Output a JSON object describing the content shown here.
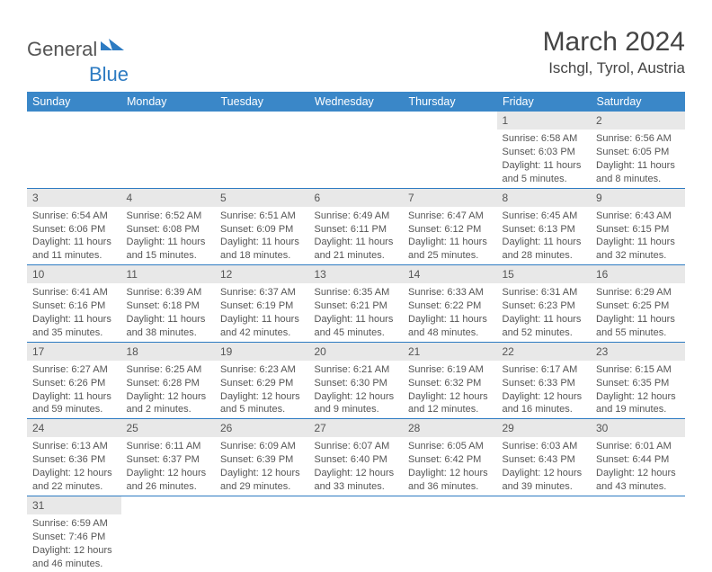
{
  "logo": {
    "general": "General",
    "blue": "Blue"
  },
  "title": "March 2024",
  "location": "Ischgl, Tyrol, Austria",
  "colors": {
    "header_bg": "#3a87c8",
    "header_text": "#ffffff",
    "border": "#2d7bc2",
    "daynum_bg": "#e8e8e8",
    "text": "#555555"
  },
  "weekdays": [
    "Sunday",
    "Monday",
    "Tuesday",
    "Wednesday",
    "Thursday",
    "Friday",
    "Saturday"
  ],
  "weeks": [
    [
      null,
      null,
      null,
      null,
      null,
      {
        "n": "1",
        "sr": "6:58 AM",
        "ss": "6:03 PM",
        "dl": "11 hours and 5 minutes."
      },
      {
        "n": "2",
        "sr": "6:56 AM",
        "ss": "6:05 PM",
        "dl": "11 hours and 8 minutes."
      }
    ],
    [
      {
        "n": "3",
        "sr": "6:54 AM",
        "ss": "6:06 PM",
        "dl": "11 hours and 11 minutes."
      },
      {
        "n": "4",
        "sr": "6:52 AM",
        "ss": "6:08 PM",
        "dl": "11 hours and 15 minutes."
      },
      {
        "n": "5",
        "sr": "6:51 AM",
        "ss": "6:09 PM",
        "dl": "11 hours and 18 minutes."
      },
      {
        "n": "6",
        "sr": "6:49 AM",
        "ss": "6:11 PM",
        "dl": "11 hours and 21 minutes."
      },
      {
        "n": "7",
        "sr": "6:47 AM",
        "ss": "6:12 PM",
        "dl": "11 hours and 25 minutes."
      },
      {
        "n": "8",
        "sr": "6:45 AM",
        "ss": "6:13 PM",
        "dl": "11 hours and 28 minutes."
      },
      {
        "n": "9",
        "sr": "6:43 AM",
        "ss": "6:15 PM",
        "dl": "11 hours and 32 minutes."
      }
    ],
    [
      {
        "n": "10",
        "sr": "6:41 AM",
        "ss": "6:16 PM",
        "dl": "11 hours and 35 minutes."
      },
      {
        "n": "11",
        "sr": "6:39 AM",
        "ss": "6:18 PM",
        "dl": "11 hours and 38 minutes."
      },
      {
        "n": "12",
        "sr": "6:37 AM",
        "ss": "6:19 PM",
        "dl": "11 hours and 42 minutes."
      },
      {
        "n": "13",
        "sr": "6:35 AM",
        "ss": "6:21 PM",
        "dl": "11 hours and 45 minutes."
      },
      {
        "n": "14",
        "sr": "6:33 AM",
        "ss": "6:22 PM",
        "dl": "11 hours and 48 minutes."
      },
      {
        "n": "15",
        "sr": "6:31 AM",
        "ss": "6:23 PM",
        "dl": "11 hours and 52 minutes."
      },
      {
        "n": "16",
        "sr": "6:29 AM",
        "ss": "6:25 PM",
        "dl": "11 hours and 55 minutes."
      }
    ],
    [
      {
        "n": "17",
        "sr": "6:27 AM",
        "ss": "6:26 PM",
        "dl": "11 hours and 59 minutes."
      },
      {
        "n": "18",
        "sr": "6:25 AM",
        "ss": "6:28 PM",
        "dl": "12 hours and 2 minutes."
      },
      {
        "n": "19",
        "sr": "6:23 AM",
        "ss": "6:29 PM",
        "dl": "12 hours and 5 minutes."
      },
      {
        "n": "20",
        "sr": "6:21 AM",
        "ss": "6:30 PM",
        "dl": "12 hours and 9 minutes."
      },
      {
        "n": "21",
        "sr": "6:19 AM",
        "ss": "6:32 PM",
        "dl": "12 hours and 12 minutes."
      },
      {
        "n": "22",
        "sr": "6:17 AM",
        "ss": "6:33 PM",
        "dl": "12 hours and 16 minutes."
      },
      {
        "n": "23",
        "sr": "6:15 AM",
        "ss": "6:35 PM",
        "dl": "12 hours and 19 minutes."
      }
    ],
    [
      {
        "n": "24",
        "sr": "6:13 AM",
        "ss": "6:36 PM",
        "dl": "12 hours and 22 minutes."
      },
      {
        "n": "25",
        "sr": "6:11 AM",
        "ss": "6:37 PM",
        "dl": "12 hours and 26 minutes."
      },
      {
        "n": "26",
        "sr": "6:09 AM",
        "ss": "6:39 PM",
        "dl": "12 hours and 29 minutes."
      },
      {
        "n": "27",
        "sr": "6:07 AM",
        "ss": "6:40 PM",
        "dl": "12 hours and 33 minutes."
      },
      {
        "n": "28",
        "sr": "6:05 AM",
        "ss": "6:42 PM",
        "dl": "12 hours and 36 minutes."
      },
      {
        "n": "29",
        "sr": "6:03 AM",
        "ss": "6:43 PM",
        "dl": "12 hours and 39 minutes."
      },
      {
        "n": "30",
        "sr": "6:01 AM",
        "ss": "6:44 PM",
        "dl": "12 hours and 43 minutes."
      }
    ],
    [
      {
        "n": "31",
        "sr": "6:59 AM",
        "ss": "7:46 PM",
        "dl": "12 hours and 46 minutes."
      },
      null,
      null,
      null,
      null,
      null,
      null
    ]
  ],
  "labels": {
    "sunrise": "Sunrise:",
    "sunset": "Sunset:",
    "daylight": "Daylight:"
  }
}
